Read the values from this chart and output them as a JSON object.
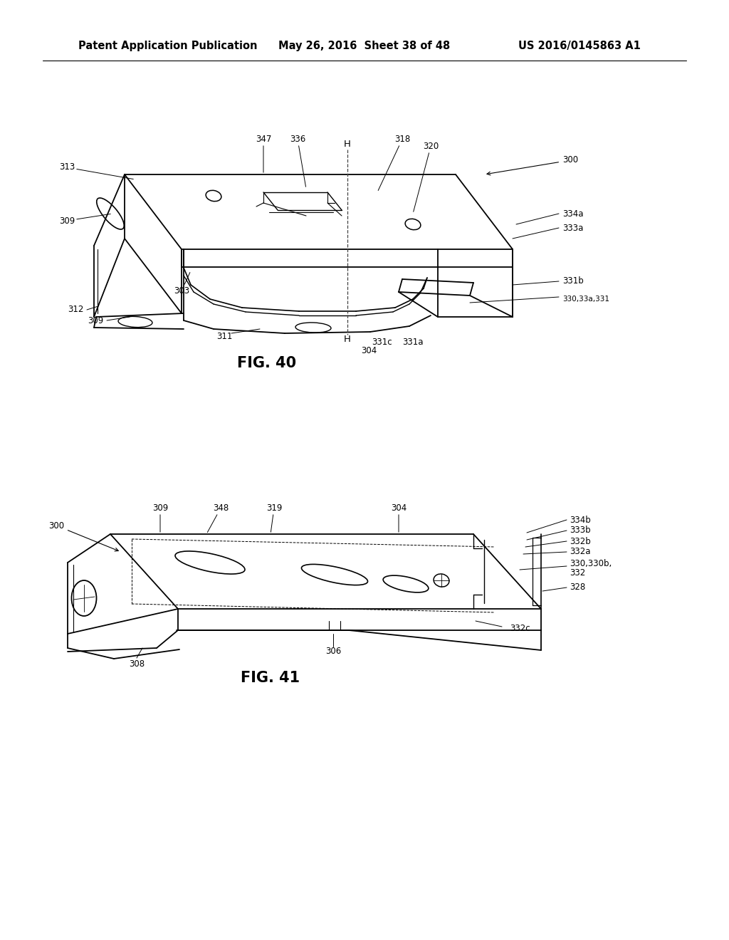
{
  "background_color": "#ffffff",
  "page_width": 10.24,
  "page_height": 13.2,
  "header": {
    "left": "Patent Application Publication",
    "center": "May 26, 2016  Sheet 38 of 48",
    "right": "US 2016/0145863 A1",
    "fontsize": 10.5
  },
  "line_color": "#000000",
  "annotation_fontsize": 8.5,
  "fig40_caption": "FIG. 40",
  "fig41_caption": "FIG. 41",
  "caption_fontsize": 15
}
